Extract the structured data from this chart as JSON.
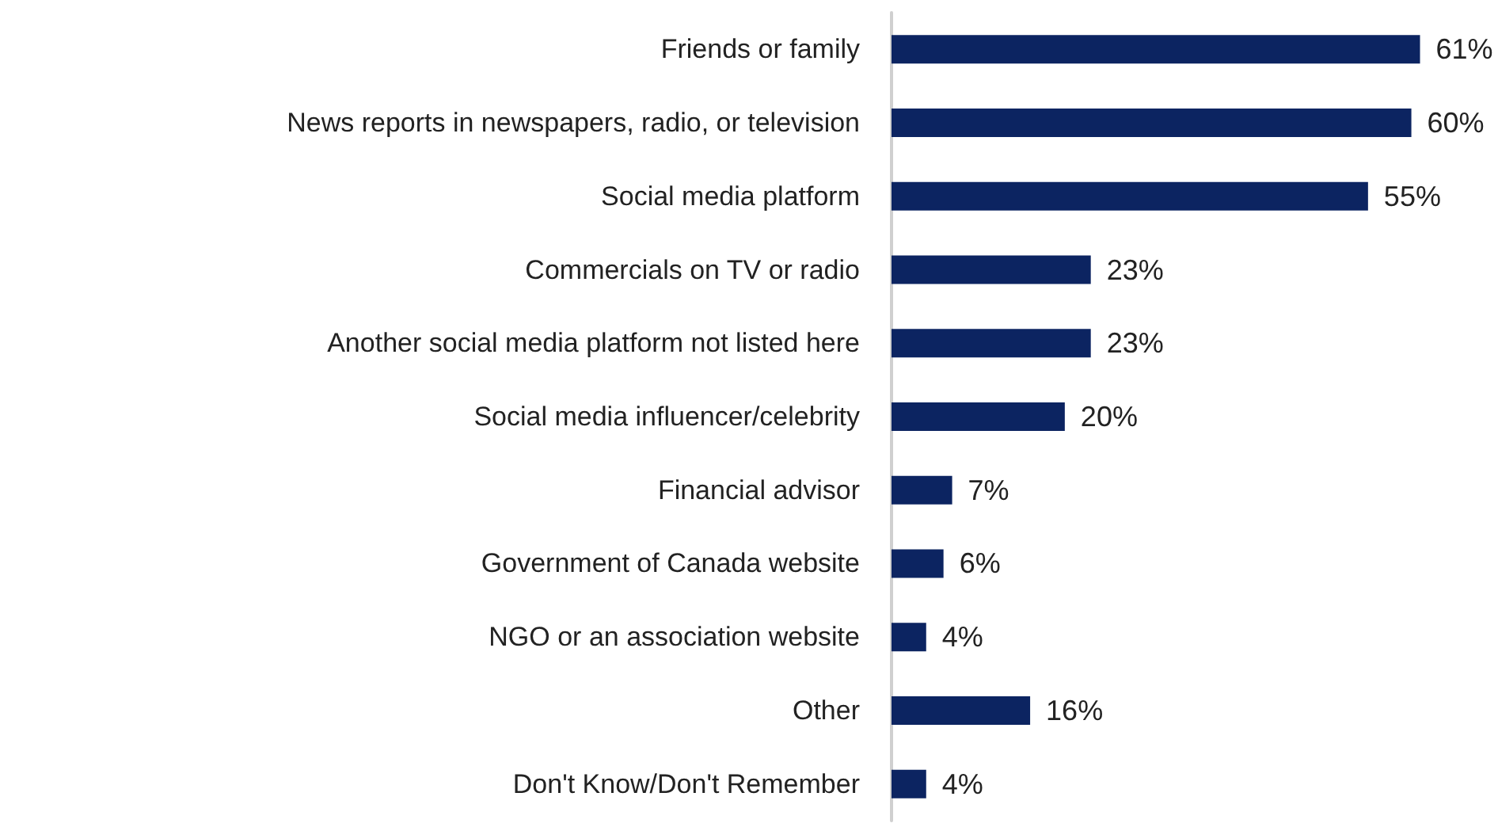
{
  "chart_data": {
    "type": "bar",
    "orientation": "horizontal",
    "categories": [
      "Friends or family",
      "News reports in newspapers, radio, or television",
      "Social media platform",
      "Commercials on TV or radio",
      "Another social media platform not listed here",
      "Social media influencer/celebrity",
      "Financial advisor",
      "Government of Canada website",
      "NGO or an association website",
      "Other",
      "Don't Know/Don't Remember"
    ],
    "values": [
      61,
      60,
      55,
      23,
      23,
      20,
      7,
      6,
      4,
      16,
      4
    ],
    "value_labels": [
      "61%",
      "60%",
      "55%",
      "23%",
      "23%",
      "20%",
      "7%",
      "6%",
      "4%",
      "16%",
      "4%"
    ],
    "color": "#0c2461"
  }
}
